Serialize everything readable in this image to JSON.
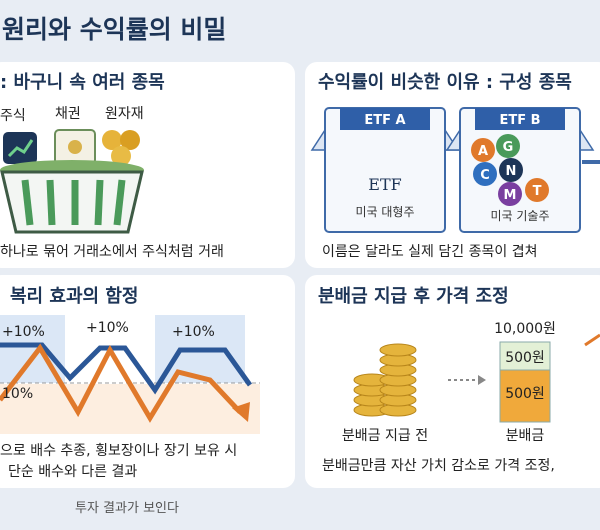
{
  "header": {
    "title": "원리와 수익률의 비밀"
  },
  "panels": [
    {
      "title": ": 바구니 속 여러 종목",
      "labels": [
        "주식",
        "채권",
        "원자재"
      ],
      "caption": "하나로 묶어 거래소에서 주식처럼 거래"
    },
    {
      "title": "수익률이 비슷한 이유 : 구성 종목",
      "boxes": [
        {
          "tab": "ETF A",
          "name": "ETF",
          "label": "미국 대형주"
        },
        {
          "tab": "ETF B",
          "holdings": [
            "A",
            "G",
            "C",
            "N",
            "M",
            "T"
          ],
          "label": "미국 기술주"
        }
      ],
      "caption": "이름은 달라도 실제 담긴 종목이 겹쳐"
    },
    {
      "title": "복리 효과의 함정",
      "annotations": [
        "+10%",
        "+10%",
        "+10%",
        "10%"
      ],
      "caption_lines": [
        "으로 배수 추종, 횡보장이나 장기 보유 시",
        "단순 배수와 다른 결과"
      ]
    },
    {
      "title": "분배금 지급 후 가격 조정",
      "price": "10,000원",
      "segments": [
        "500원",
        "500원"
      ],
      "labels": [
        "분배금 지급 전",
        "분배금"
      ],
      "caption": "분배금만큼 자산 가치 감소로 가격 조정,"
    }
  ],
  "footer": "투자 결과가 보인다"
}
